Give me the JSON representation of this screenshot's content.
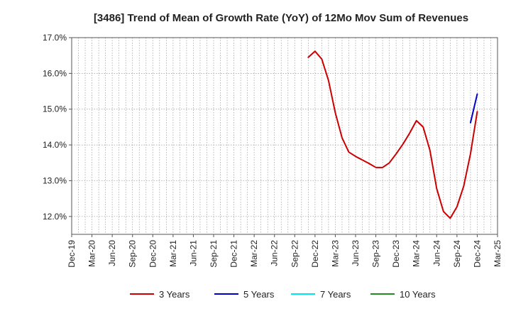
{
  "chart_data": {
    "type": "line",
    "title": "[3486]  Trend of Mean of Growth Rate (YoY) of 12Mo Mov Sum of Revenues",
    "xlabel": "",
    "ylabel": "",
    "ylim": [
      11.5,
      17.0
    ],
    "yticks": [
      12.0,
      13.0,
      14.0,
      15.0,
      16.0,
      17.0
    ],
    "ytick_labels": [
      "12.0%",
      "13.0%",
      "14.0%",
      "15.0%",
      "16.0%",
      "17.0%"
    ],
    "x_start": "Dec-19",
    "x_months": 63,
    "xtick_labels": [
      "Dec-19",
      "Mar-20",
      "Jun-20",
      "Sep-20",
      "Dec-20",
      "Mar-21",
      "Jun-21",
      "Sep-21",
      "Dec-21",
      "Mar-22",
      "Jun-22",
      "Sep-22",
      "Dec-22",
      "Mar-23",
      "Jun-23",
      "Sep-23",
      "Dec-23",
      "Mar-24",
      "Jun-24",
      "Sep-24",
      "Dec-24",
      "Mar-25"
    ],
    "grid": true,
    "legend_position": "bottom",
    "series": [
      {
        "name": "3 Years",
        "color": "#cc0000",
        "start_index": 35,
        "values": [
          16.45,
          16.62,
          16.4,
          15.8,
          14.9,
          14.2,
          13.8,
          13.68,
          13.58,
          13.48,
          13.37,
          13.37,
          13.5,
          13.75,
          14.02,
          14.33,
          14.68,
          14.5,
          13.85,
          12.78,
          12.14,
          11.95,
          12.27,
          12.85,
          13.75,
          14.93
        ]
      },
      {
        "name": "5 Years",
        "color": "#0000cc",
        "start_index": 59,
        "values": [
          14.62,
          15.42
        ]
      },
      {
        "name": "7 Years",
        "color": "#00e5ee",
        "start_index": 0,
        "values": []
      },
      {
        "name": "10 Years",
        "color": "#228b22",
        "start_index": 0,
        "values": []
      }
    ]
  }
}
